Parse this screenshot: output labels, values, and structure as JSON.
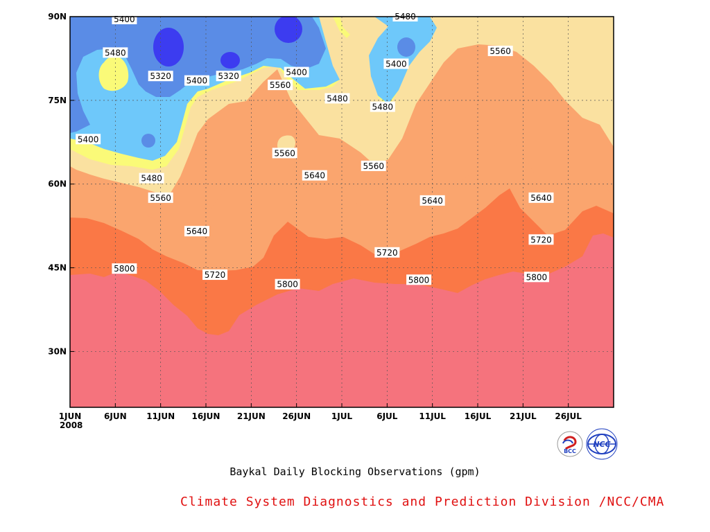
{
  "chart_data": {
    "type": "heatmap",
    "title": "Baykal Daily Blocking Observations (gpm)",
    "x_ticks": [
      "1JUN",
      "6JUN",
      "11JUN",
      "16JUN",
      "21JUN",
      "26JUN",
      "1JUL",
      "6JUL",
      "11JUL",
      "16JUL",
      "21JUL",
      "26JUL"
    ],
    "x_year": "2008",
    "y_ticks": [
      "30N",
      "45N",
      "60N",
      "75N",
      "90N"
    ],
    "y_range": [
      20,
      90
    ],
    "x_range_days": [
      0,
      60
    ],
    "levels": [
      5320,
      5400,
      5480,
      5560,
      5640,
      5720,
      5800
    ],
    "fill_colors": {
      "below_5320": "#3c3cf0",
      "5320_5400": "#5a8ce6",
      "5400_5480": "#6ec8fa",
      "5480_5560": "#fafa78",
      "5560_5640": "#fae1a0",
      "5640_5720": "#faa56e",
      "5720_5800": "#fa7846",
      "above_5800": "#f5737d"
    },
    "contour_labels": [
      {
        "value": "5400",
        "day": 6.0,
        "lat": 89.5
      },
      {
        "value": "5480",
        "day": 5.0,
        "lat": 83.5
      },
      {
        "value": "5320",
        "day": 10.0,
        "lat": 79.3
      },
      {
        "value": "5400",
        "day": 14.0,
        "lat": 78.5
      },
      {
        "value": "5320",
        "day": 17.5,
        "lat": 79.3
      },
      {
        "value": "5400",
        "day": 25.0,
        "lat": 80.0
      },
      {
        "value": "5560",
        "day": 23.2,
        "lat": 77.7
      },
      {
        "value": "5480",
        "day": 29.5,
        "lat": 75.3
      },
      {
        "value": "5480",
        "day": 37.0,
        "lat": 90.0
      },
      {
        "value": "5400",
        "day": 36.0,
        "lat": 81.5
      },
      {
        "value": "5480",
        "day": 34.5,
        "lat": 73.8
      },
      {
        "value": "5560",
        "day": 47.5,
        "lat": 83.8
      },
      {
        "value": "5400",
        "day": 2.0,
        "lat": 68.0
      },
      {
        "value": "5560",
        "day": 23.7,
        "lat": 65.5
      },
      {
        "value": "5560",
        "day": 33.5,
        "lat": 63.2
      },
      {
        "value": "5480",
        "day": 9.0,
        "lat": 61.0
      },
      {
        "value": "5560",
        "day": 10.0,
        "lat": 57.5
      },
      {
        "value": "5640",
        "day": 27.0,
        "lat": 61.5
      },
      {
        "value": "5640",
        "day": 40.0,
        "lat": 57.0
      },
      {
        "value": "5640",
        "day": 52.0,
        "lat": 57.5
      },
      {
        "value": "5640",
        "day": 14.0,
        "lat": 51.5
      },
      {
        "value": "5720",
        "day": 35.0,
        "lat": 47.7
      },
      {
        "value": "5720",
        "day": 52.0,
        "lat": 50.0
      },
      {
        "value": "5800",
        "day": 6.0,
        "lat": 44.8
      },
      {
        "value": "5720",
        "day": 16.0,
        "lat": 43.7
      },
      {
        "value": "5800",
        "day": 24.0,
        "lat": 42.0
      },
      {
        "value": "5800",
        "day": 38.5,
        "lat": 42.8
      },
      {
        "value": "5800",
        "day": 51.5,
        "lat": 43.3
      }
    ],
    "grid": true
  },
  "footer": {
    "title": "Baykal Daily Blocking Observations (gpm)",
    "credit": "Climate System Diagnostics and Prediction Division /NCC/CMA",
    "credit_color": "#e01010",
    "logo_left_text": "BCC",
    "logo_right_text": "NCC"
  }
}
